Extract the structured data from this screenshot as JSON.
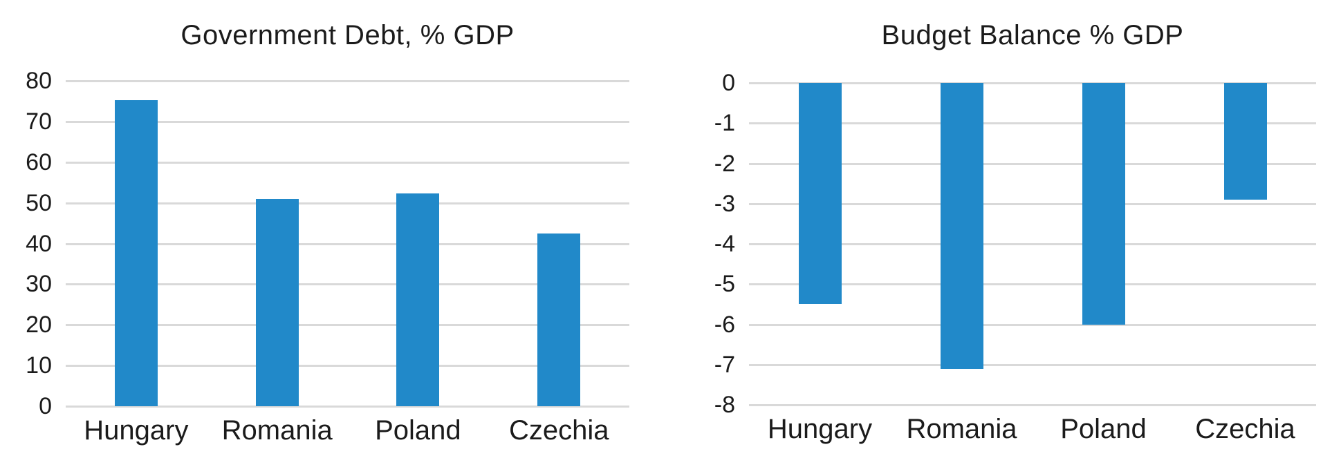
{
  "canvas": {
    "background": "#ffffff"
  },
  "style": {
    "bar_color": "#2189c9",
    "gridline_color": "#d9d9d9",
    "text_color": "#1b1b1b"
  },
  "chart_data": [
    {
      "type": "bar",
      "title": "Government Debt, % GDP",
      "categories": [
        "Hungary",
        "Romania",
        "Poland",
        "Czechia"
      ],
      "values": [
        75.3,
        51.0,
        52.3,
        42.5
      ],
      "xlabel": "",
      "ylabel": "",
      "ylim": [
        0,
        80
      ],
      "yticks": [
        80,
        70,
        60,
        50,
        40,
        30,
        20,
        10,
        0
      ],
      "grid": true,
      "legend": false,
      "bar_color": "#2189c9"
    },
    {
      "type": "bar",
      "title": "Budget Balance % GDP",
      "categories": [
        "Hungary",
        "Romania",
        "Poland",
        "Czechia"
      ],
      "values": [
        -5.5,
        -7.1,
        -6.0,
        -2.9
      ],
      "xlabel": "",
      "ylabel": "",
      "ylim": [
        -8,
        0
      ],
      "yticks": [
        0,
        -1,
        -2,
        -3,
        -4,
        -5,
        -6,
        -7,
        -8
      ],
      "grid": true,
      "legend": false,
      "bar_color": "#2189c9"
    }
  ]
}
